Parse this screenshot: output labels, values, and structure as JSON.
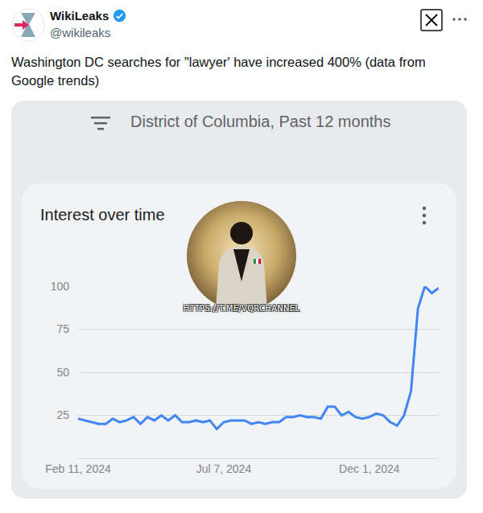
{
  "post": {
    "name": "WikiLeaks",
    "handle": "@wikileaks",
    "text": "Washington DC searches for \"lawyer' have increased 400% (data from Google trends)"
  },
  "watermark": "HTTPS://T.ME/VQRCHANNEL",
  "chart_data": {
    "type": "line",
    "header": "District of Columbia, Past 12 months",
    "title": "Interest over time",
    "categories": [
      "Feb 11, 2024",
      null,
      null,
      null,
      null,
      null,
      null,
      null,
      null,
      null,
      null,
      null,
      null,
      null,
      null,
      null,
      null,
      null,
      null,
      null,
      null,
      "Jul 7, 2024",
      null,
      null,
      null,
      null,
      null,
      null,
      null,
      null,
      null,
      null,
      null,
      null,
      null,
      null,
      null,
      null,
      null,
      null,
      null,
      null,
      "Dec 1, 2024",
      null,
      null,
      null,
      null,
      null,
      null,
      null,
      null,
      null,
      null
    ],
    "values": [
      23,
      22,
      21,
      20,
      20,
      23,
      21,
      22,
      24,
      20,
      24,
      22,
      25,
      22,
      25,
      21,
      21,
      22,
      21,
      22,
      17,
      21,
      22,
      22,
      22,
      20,
      21,
      20,
      21,
      21,
      24,
      24,
      25,
      24,
      24,
      23,
      30,
      30,
      25,
      27,
      24,
      23,
      24,
      26,
      25,
      21,
      19,
      25,
      39,
      87,
      100,
      96,
      99
    ],
    "color": "#4285f4",
    "ylim": [
      0,
      100
    ],
    "yticks": [
      25,
      50,
      75,
      100
    ],
    "grid": true
  }
}
